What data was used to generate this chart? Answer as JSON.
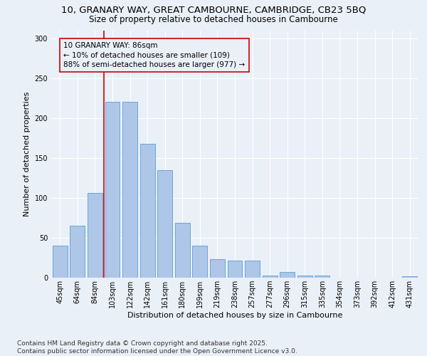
{
  "title_line1": "10, GRANARY WAY, GREAT CAMBOURNE, CAMBRIDGE, CB23 5BQ",
  "title_line2": "Size of property relative to detached houses in Cambourne",
  "xlabel": "Distribution of detached houses by size in Cambourne",
  "ylabel": "Number of detached properties",
  "categories": [
    "45sqm",
    "64sqm",
    "84sqm",
    "103sqm",
    "122sqm",
    "142sqm",
    "161sqm",
    "180sqm",
    "199sqm",
    "219sqm",
    "238sqm",
    "257sqm",
    "277sqm",
    "296sqm",
    "315sqm",
    "335sqm",
    "354sqm",
    "373sqm",
    "392sqm",
    "412sqm",
    "431sqm"
  ],
  "values": [
    40,
    65,
    106,
    220,
    220,
    168,
    135,
    69,
    40,
    23,
    21,
    21,
    3,
    7,
    3,
    3,
    0,
    0,
    0,
    0,
    2
  ],
  "bar_color": "#aec6e8",
  "bar_edge_color": "#5a9fd4",
  "vline_x": 2.5,
  "vline_color": "#cc0000",
  "annotation_text": "10 GRANARY WAY: 86sqm\n← 10% of detached houses are smaller (109)\n88% of semi-detached houses are larger (977) →",
  "annotation_box_color": "#cc0000",
  "ylim": [
    0,
    310
  ],
  "background_color": "#eaf0f8",
  "grid_color": "#ffffff",
  "footer_text": "Contains HM Land Registry data © Crown copyright and database right 2025.\nContains public sector information licensed under the Open Government Licence v3.0.",
  "title_fontsize": 9.5,
  "subtitle_fontsize": 8.5,
  "axis_label_fontsize": 8,
  "tick_fontsize": 7,
  "annotation_fontsize": 7.5,
  "footer_fontsize": 6.5,
  "yticks": [
    0,
    50,
    100,
    150,
    200,
    250,
    300
  ]
}
